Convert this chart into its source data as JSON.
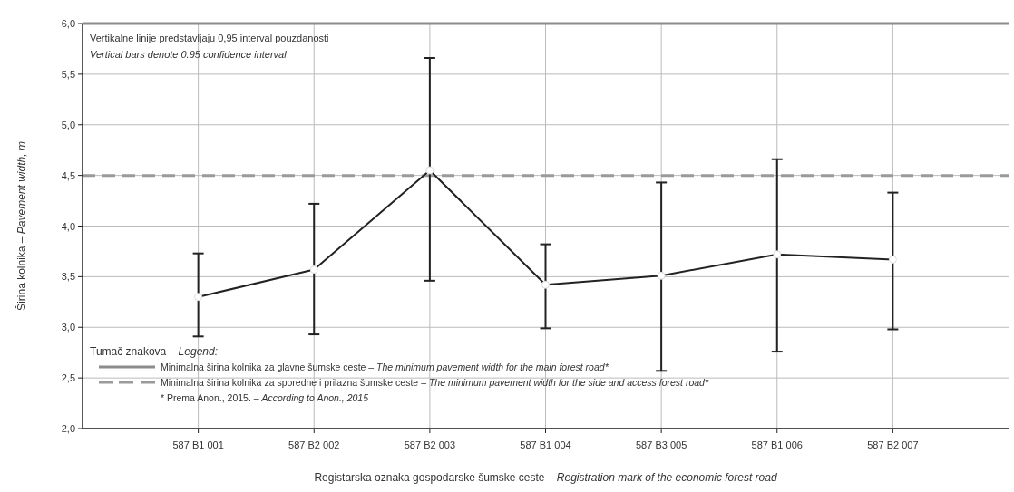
{
  "chart_data": {
    "type": "line",
    "categories": [
      "587 B1 001",
      "587 B2 002",
      "587 B2 003",
      "587 B1 004",
      "587 B3 005",
      "587 B1 006",
      "587 B2 007"
    ],
    "series": [
      {
        "color": "#222222",
        "values": [
          3.3,
          3.57,
          4.55,
          3.42,
          3.51,
          3.72,
          3.67
        ],
        "errors": [
          [
            2.91,
            3.73
          ],
          [
            2.93,
            4.22
          ],
          [
            3.46,
            5.66
          ],
          [
            2.99,
            3.82
          ],
          [
            2.57,
            4.43
          ],
          [
            2.76,
            4.66
          ],
          [
            2.98,
            4.33
          ]
        ]
      }
    ],
    "ylim": [
      2.0,
      6.0
    ],
    "yticks": [
      {
        "value": 2.0,
        "label": "2,0"
      },
      {
        "value": 2.5,
        "label": "2,5"
      },
      {
        "value": 3.0,
        "label": "3,0"
      },
      {
        "value": 3.5,
        "label": "3,5"
      },
      {
        "value": 4.0,
        "label": "4,0"
      },
      {
        "value": 4.5,
        "label": "4,5"
      },
      {
        "value": 5.0,
        "label": "5,0"
      },
      {
        "value": 5.5,
        "label": "5,5"
      },
      {
        "value": 6.0,
        "label": "6,0"
      }
    ],
    "xlabel": "Registarska oznaka gospodarske šumske ceste – Registration mark of the economic forest road",
    "ylabel": "Širina kolnika – Pavement width, m",
    "ref_lines": [
      {
        "axis": "y",
        "value": 6.0,
        "label": "Minimalna širina kolnika za glavne šumske ceste – The minimum pavement width for the main forest road*",
        "color": "#8c8c8c",
        "line_style": "solid"
      },
      {
        "axis": "y",
        "value": 4.5,
        "label": "Minimalna širina kolnika za sporedne i prilazna šumske ceste – The minimum pavement width for the side and access forest road*",
        "color": "#9a9a9a",
        "line_style": "dashed"
      }
    ],
    "legend_title": "Tumač znakova – Legend:",
    "legend": "bottom left",
    "annotations": [
      "Vertikalne linije predstavljaju 0,95 interval pouzdanosti",
      "Vertical bars denote 0.95 confidence interval",
      "* Prema Anon., 2015. – According to Anon., 2015"
    ],
    "grid": true,
    "marker": "circle",
    "line_style": "solid"
  }
}
